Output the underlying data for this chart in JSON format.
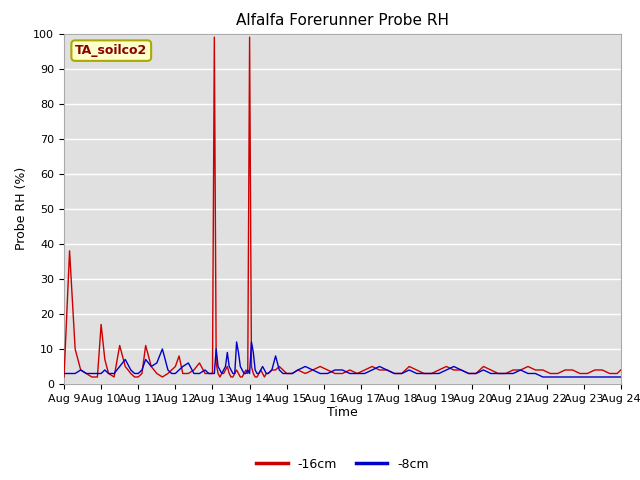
{
  "title": "Alfalfa Forerunner Probe RH",
  "xlabel": "Time",
  "ylabel": "Probe RH (%)",
  "ylim": [
    0,
    100
  ],
  "station_label": "TA_soilco2",
  "legend_labels": [
    "-16cm",
    "-8cm"
  ],
  "line_colors": [
    "#cc0000",
    "#0000cc"
  ],
  "plot_bg_color": "#e0e0e0",
  "fig_bg_color": "#ffffff",
  "grid_color": "#ffffff",
  "x_tick_labels": [
    "Aug 9",
    "Aug 10",
    "Aug 11",
    "Aug 12",
    "Aug 13",
    "Aug 14",
    "Aug 15",
    "Aug 16",
    "Aug 17",
    "Aug 18",
    "Aug 19",
    "Aug 20",
    "Aug 21",
    "Aug 22",
    "Aug 23",
    "Aug 24"
  ],
  "red_series": {
    "days": [
      0.0,
      0.15,
      0.3,
      0.45,
      0.6,
      0.75,
      0.9,
      1.0,
      1.1,
      1.2,
      1.35,
      1.5,
      1.65,
      1.8,
      1.9,
      2.0,
      2.1,
      2.2,
      2.35,
      2.5,
      2.65,
      2.8,
      2.9,
      3.0,
      3.1,
      3.2,
      3.35,
      3.5,
      3.65,
      3.8,
      3.9,
      4.0,
      4.05,
      4.1,
      4.15,
      4.2,
      4.25,
      4.3,
      4.35,
      4.4,
      4.45,
      4.5,
      4.55,
      4.6,
      4.65,
      4.7,
      4.75,
      4.8,
      4.85,
      4.9,
      4.95,
      5.0,
      5.05,
      5.1,
      5.15,
      5.2,
      5.25,
      5.3,
      5.35,
      5.4,
      5.45,
      5.5,
      5.6,
      5.7,
      5.8,
      5.9,
      6.0,
      6.15,
      6.3,
      6.5,
      6.7,
      6.9,
      7.1,
      7.3,
      7.5,
      7.7,
      7.9,
      8.1,
      8.3,
      8.5,
      8.7,
      8.9,
      9.1,
      9.3,
      9.5,
      9.7,
      9.9,
      10.1,
      10.3,
      10.5,
      10.7,
      10.9,
      11.1,
      11.3,
      11.5,
      11.7,
      11.9,
      12.1,
      12.3,
      12.5,
      12.7,
      12.9,
      13.1,
      13.3,
      13.5,
      13.7,
      13.9,
      14.1,
      14.3,
      14.5,
      14.7,
      14.9,
      15.0
    ],
    "values": [
      2,
      38,
      10,
      4,
      3,
      2,
      2,
      17,
      7,
      3,
      2,
      11,
      5,
      3,
      2,
      2,
      3,
      11,
      5,
      3,
      2,
      3,
      4,
      5,
      8,
      3,
      3,
      4,
      6,
      3,
      3,
      3,
      99,
      6,
      3,
      2,
      3,
      3,
      4,
      5,
      3,
      2,
      2,
      3,
      4,
      3,
      2,
      2,
      3,
      4,
      3,
      99,
      5,
      3,
      2,
      2,
      3,
      4,
      3,
      2,
      3,
      3,
      4,
      4,
      5,
      4,
      3,
      3,
      4,
      3,
      4,
      5,
      4,
      3,
      3,
      4,
      3,
      4,
      5,
      4,
      4,
      3,
      3,
      5,
      4,
      3,
      3,
      4,
      5,
      4,
      4,
      3,
      3,
      5,
      4,
      3,
      3,
      4,
      4,
      5,
      4,
      4,
      3,
      3,
      4,
      4,
      3,
      3,
      4,
      4,
      3,
      3,
      4
    ]
  },
  "blue_series": {
    "days": [
      0.0,
      0.15,
      0.3,
      0.45,
      0.6,
      0.75,
      0.9,
      1.0,
      1.1,
      1.2,
      1.35,
      1.5,
      1.65,
      1.8,
      1.9,
      2.0,
      2.1,
      2.2,
      2.35,
      2.5,
      2.65,
      2.8,
      2.9,
      3.0,
      3.1,
      3.2,
      3.35,
      3.5,
      3.65,
      3.8,
      3.9,
      4.0,
      4.05,
      4.1,
      4.15,
      4.2,
      4.25,
      4.3,
      4.35,
      4.4,
      4.45,
      4.5,
      4.55,
      4.6,
      4.65,
      4.7,
      4.75,
      4.8,
      4.85,
      4.9,
      4.95,
      5.0,
      5.05,
      5.1,
      5.15,
      5.2,
      5.25,
      5.3,
      5.35,
      5.4,
      5.45,
      5.5,
      5.6,
      5.7,
      5.8,
      5.9,
      6.0,
      6.15,
      6.3,
      6.5,
      6.7,
      6.9,
      7.1,
      7.3,
      7.5,
      7.7,
      7.9,
      8.1,
      8.3,
      8.5,
      8.7,
      8.9,
      9.1,
      9.3,
      9.5,
      9.7,
      9.9,
      10.1,
      10.3,
      10.5,
      10.7,
      10.9,
      11.1,
      11.3,
      11.5,
      11.7,
      11.9,
      12.1,
      12.3,
      12.5,
      12.7,
      12.9,
      13.1,
      13.3,
      13.5,
      13.7,
      13.9,
      14.1,
      14.3,
      14.5,
      14.7,
      14.9,
      15.0
    ],
    "values": [
      3,
      3,
      3,
      4,
      3,
      3,
      3,
      3,
      4,
      3,
      3,
      5,
      7,
      4,
      3,
      3,
      4,
      7,
      5,
      6,
      10,
      4,
      3,
      3,
      4,
      5,
      6,
      3,
      3,
      4,
      3,
      3,
      3,
      10,
      5,
      4,
      3,
      4,
      5,
      9,
      5,
      4,
      3,
      3,
      12,
      9,
      5,
      4,
      3,
      3,
      4,
      3,
      12,
      9,
      4,
      3,
      3,
      4,
      5,
      4,
      3,
      3,
      4,
      8,
      4,
      3,
      3,
      3,
      4,
      5,
      4,
      3,
      3,
      4,
      4,
      3,
      3,
      3,
      4,
      5,
      4,
      3,
      3,
      4,
      3,
      3,
      3,
      3,
      4,
      5,
      4,
      3,
      3,
      4,
      3,
      3,
      3,
      3,
      4,
      3,
      3,
      2,
      2,
      2,
      2,
      2,
      2,
      2,
      2,
      2,
      2,
      2,
      2
    ]
  }
}
